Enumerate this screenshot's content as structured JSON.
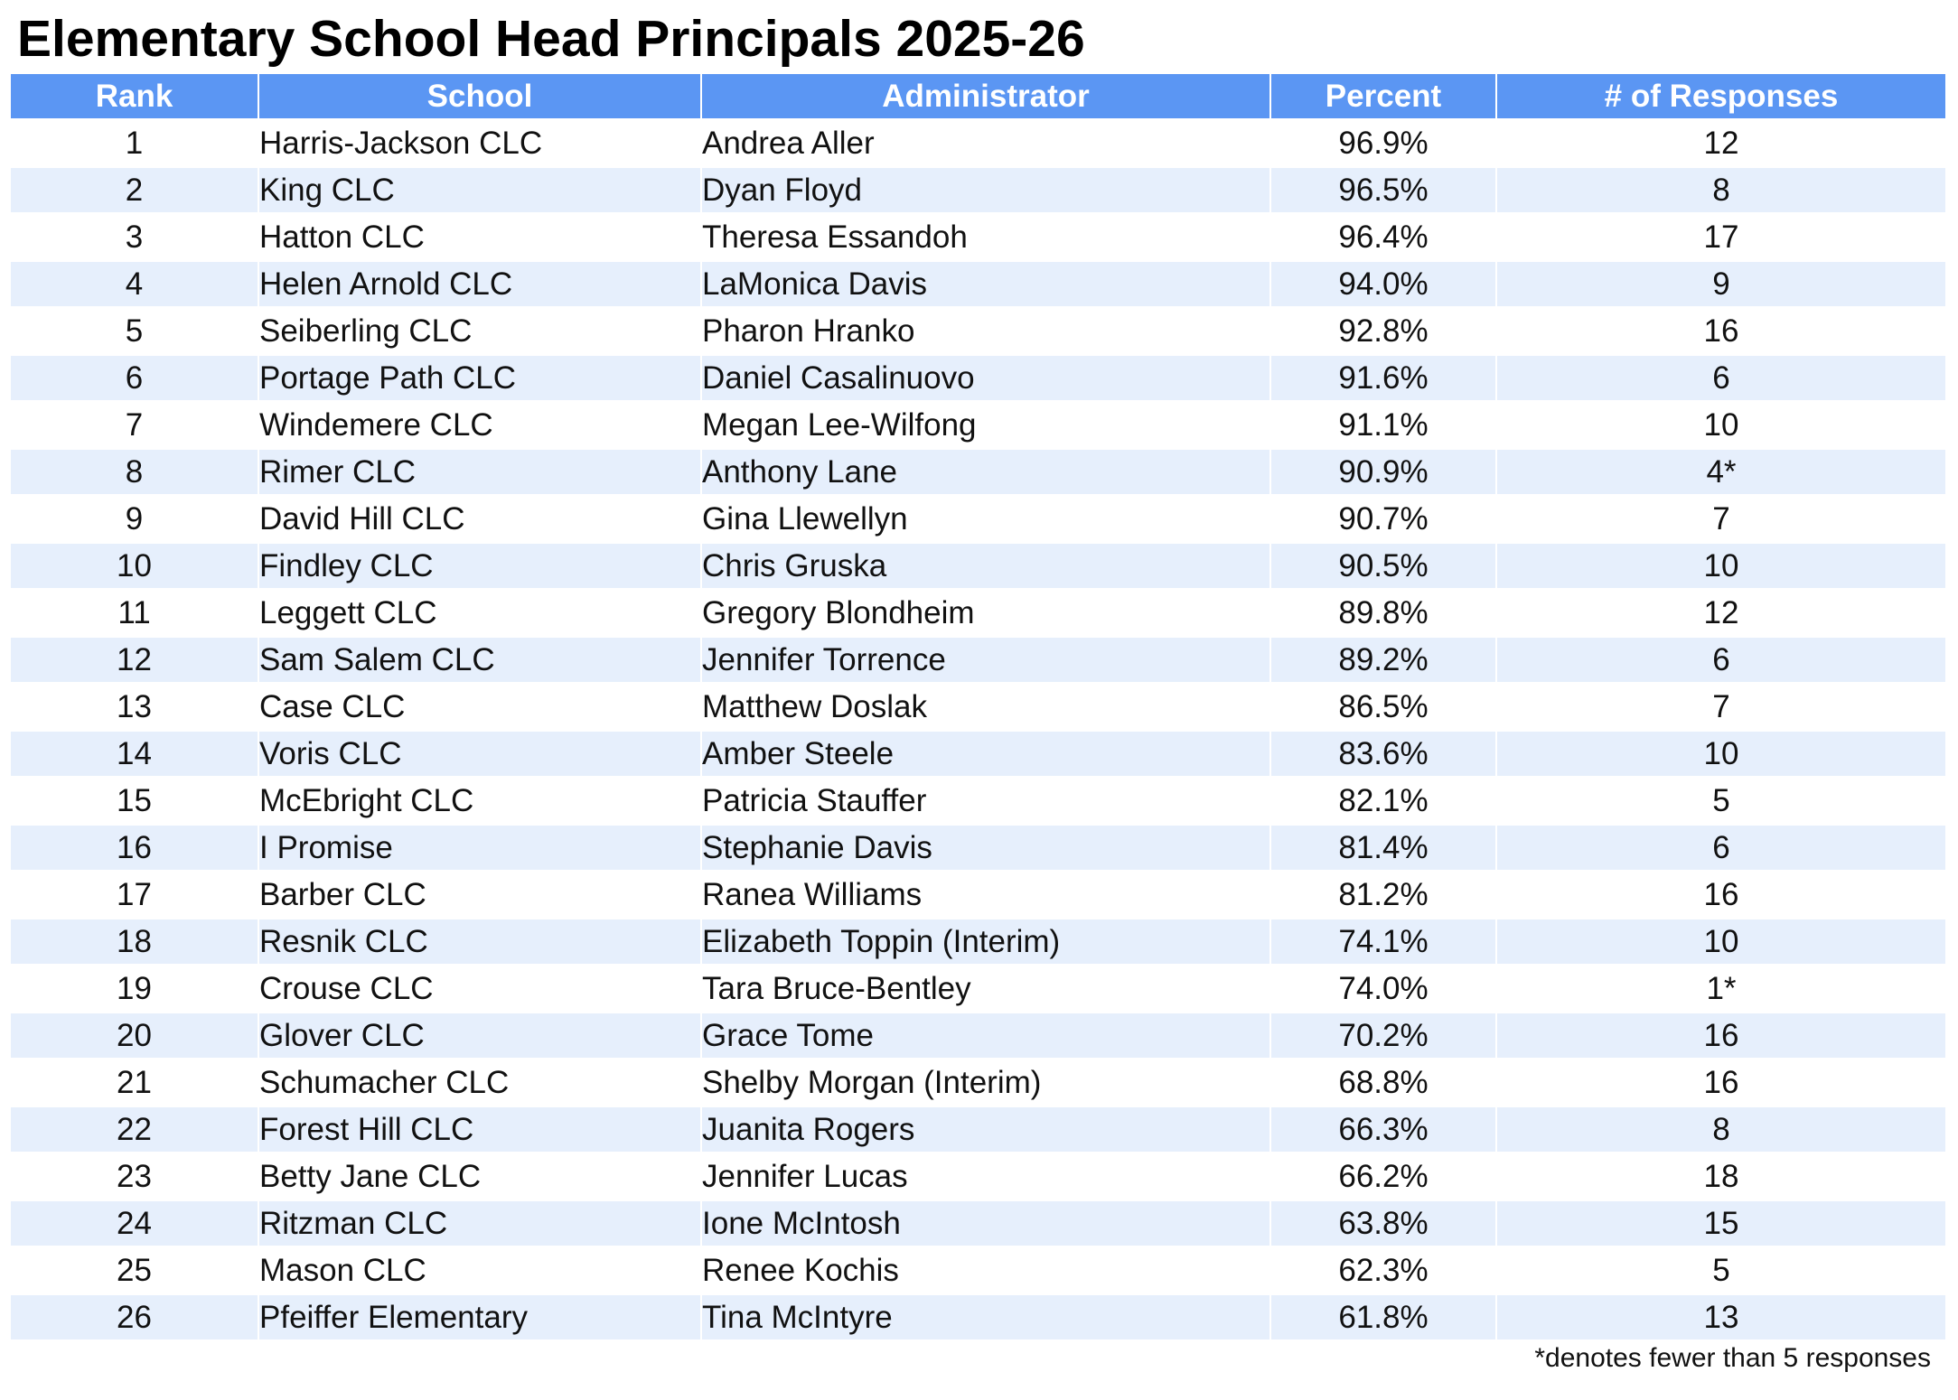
{
  "title": "Elementary School Head Principals 2025-26",
  "columns": {
    "rank": "Rank",
    "school": "School",
    "administrator": "Administrator",
    "percent": "Percent",
    "responses": "# of Responses"
  },
  "rows": [
    {
      "rank": "1",
      "school": "Harris-Jackson CLC",
      "administrator": "Andrea Aller",
      "percent": "96.9%",
      "responses": "12"
    },
    {
      "rank": "2",
      "school": "King CLC",
      "administrator": "Dyan Floyd",
      "percent": "96.5%",
      "responses": "8"
    },
    {
      "rank": "3",
      "school": "Hatton CLC",
      "administrator": "Theresa Essandoh",
      "percent": "96.4%",
      "responses": "17"
    },
    {
      "rank": "4",
      "school": "Helen Arnold CLC",
      "administrator": "LaMonica Davis",
      "percent": "94.0%",
      "responses": "9"
    },
    {
      "rank": "5",
      "school": "Seiberling CLC",
      "administrator": "Pharon Hranko",
      "percent": "92.8%",
      "responses": "16"
    },
    {
      "rank": "6",
      "school": "Portage Path CLC",
      "administrator": "Daniel Casalinuovo",
      "percent": "91.6%",
      "responses": "6"
    },
    {
      "rank": "7",
      "school": "Windemere CLC",
      "administrator": "Megan Lee-Wilfong",
      "percent": "91.1%",
      "responses": "10"
    },
    {
      "rank": "8",
      "school": "Rimer CLC",
      "administrator": "Anthony Lane",
      "percent": "90.9%",
      "responses": "4*"
    },
    {
      "rank": "9",
      "school": "David Hill CLC",
      "administrator": "Gina Llewellyn",
      "percent": "90.7%",
      "responses": "7"
    },
    {
      "rank": "10",
      "school": "Findley CLC",
      "administrator": "Chris Gruska",
      "percent": "90.5%",
      "responses": "10"
    },
    {
      "rank": "11",
      "school": "Leggett CLC",
      "administrator": "Gregory Blondheim",
      "percent": "89.8%",
      "responses": "12"
    },
    {
      "rank": "12",
      "school": "Sam Salem CLC",
      "administrator": "Jennifer Torrence",
      "percent": "89.2%",
      "responses": "6"
    },
    {
      "rank": "13",
      "school": "Case CLC",
      "administrator": "Matthew Doslak",
      "percent": "86.5%",
      "responses": "7"
    },
    {
      "rank": "14",
      "school": "Voris CLC",
      "administrator": "Amber Steele",
      "percent": "83.6%",
      "responses": "10"
    },
    {
      "rank": "15",
      "school": "McEbright CLC",
      "administrator": "Patricia Stauffer",
      "percent": "82.1%",
      "responses": "5"
    },
    {
      "rank": "16",
      "school": "I Promise",
      "administrator": "Stephanie Davis",
      "percent": "81.4%",
      "responses": "6"
    },
    {
      "rank": "17",
      "school": "Barber CLC",
      "administrator": "Ranea Williams",
      "percent": "81.2%",
      "responses": "16"
    },
    {
      "rank": "18",
      "school": "Resnik CLC",
      "administrator": "Elizabeth Toppin (Interim)",
      "percent": "74.1%",
      "responses": "10"
    },
    {
      "rank": "19",
      "school": "Crouse CLC",
      "administrator": "Tara Bruce-Bentley",
      "percent": "74.0%",
      "responses": "1*"
    },
    {
      "rank": "20",
      "school": "Glover CLC",
      "administrator": "Grace Tome",
      "percent": "70.2%",
      "responses": "16"
    },
    {
      "rank": "21",
      "school": "Schumacher CLC",
      "administrator": "Shelby Morgan (Interim)",
      "percent": "68.8%",
      "responses": "16"
    },
    {
      "rank": "22",
      "school": "Forest Hill CLC",
      "administrator": "Juanita Rogers",
      "percent": "66.3%",
      "responses": "8"
    },
    {
      "rank": "23",
      "school": "Betty Jane CLC",
      "administrator": "Jennifer Lucas",
      "percent": "66.2%",
      "responses": "18"
    },
    {
      "rank": "24",
      "school": "Ritzman CLC",
      "administrator": "Ione McIntosh",
      "percent": "63.8%",
      "responses": "15"
    },
    {
      "rank": "25",
      "school": "Mason CLC",
      "administrator": "Renee Kochis",
      "percent": "62.3%",
      "responses": "5"
    },
    {
      "rank": "26",
      "school": "Pfeiffer Elementary",
      "administrator": "Tina McIntyre",
      "percent": "61.8%",
      "responses": "13"
    }
  ],
  "footnote": "*denotes fewer than 5 responses",
  "colors": {
    "header_bg": "#5b96f3",
    "header_text": "#ffffff",
    "row_alt_bg": "#e6effc"
  }
}
